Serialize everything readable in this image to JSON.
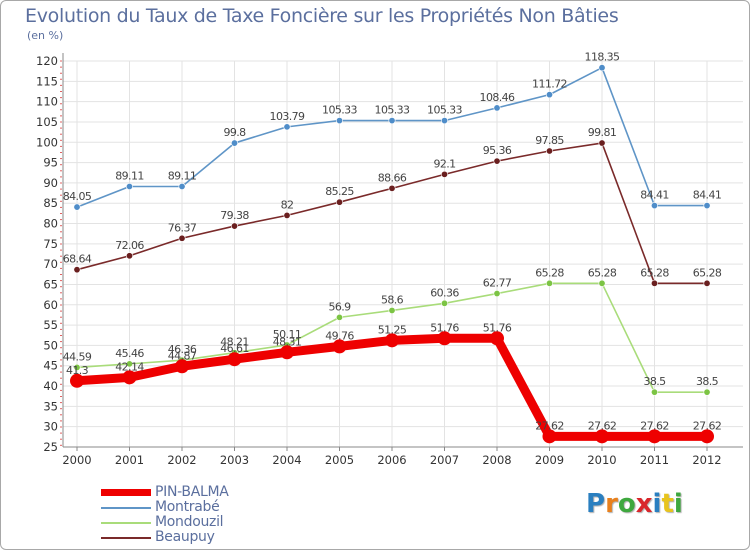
{
  "header": {
    "title": "Evolution du Taux de Taxe Foncière sur les Propriétés Non Bâties",
    "unit": "(en %)"
  },
  "logo": {
    "text": "Proxiti",
    "letters": [
      {
        "ch": "P",
        "color": "#2a7fc0"
      },
      {
        "ch": "r",
        "color": "#e8801d"
      },
      {
        "ch": "o",
        "color": "#3ea83e"
      },
      {
        "ch": "x",
        "color": "#d9262b"
      },
      {
        "ch": "i",
        "color": "#2a7fc0"
      },
      {
        "ch": "t",
        "color": "#e8c41d"
      },
      {
        "ch": "i",
        "color": "#3ea83e"
      }
    ]
  },
  "chart_data": {
    "type": "line",
    "title": "Evolution du Taux de Taxe Foncière sur les Propriétés Non Bâties",
    "ylabel": "(en %)",
    "xlabel": "",
    "x": [
      "2000",
      "2001",
      "2002",
      "2003",
      "2004",
      "2005",
      "2006",
      "2007",
      "2008",
      "2009",
      "2010",
      "2011",
      "2012"
    ],
    "ylim": [
      25,
      120
    ],
    "yticks": [
      25,
      30,
      35,
      40,
      45,
      50,
      55,
      60,
      65,
      70,
      75,
      80,
      85,
      90,
      95,
      100,
      105,
      110,
      115,
      120
    ],
    "grid": true,
    "legend_position": "bottom-left",
    "series": [
      {
        "name": "Montrabé",
        "color": "#5f95c7",
        "marker": "#4f8dc9",
        "values": [
          84.05,
          89.11,
          89.11,
          99.8,
          103.79,
          105.33,
          105.33,
          105.33,
          108.46,
          111.72,
          118.35,
          84.41,
          84.41
        ],
        "labels": [
          "84.05",
          "89.11",
          "89.11",
          "99.8",
          "103.79",
          "105.33",
          "105.33",
          "105.33",
          "108.46",
          "111.72",
          "118.35",
          "84.41",
          "84.41"
        ]
      },
      {
        "name": "Beaupuy",
        "color": "#7a2a2a",
        "marker": "#6a1f1f",
        "values": [
          68.64,
          72.06,
          76.37,
          79.38,
          82,
          85.25,
          88.66,
          92.1,
          95.36,
          97.85,
          99.81,
          65.28,
          65.28
        ],
        "labels": [
          "68.64",
          "72.06",
          "76.37",
          "79.38",
          "82",
          "85.25",
          "88.66",
          "92.1",
          "95.36",
          "97.85",
          "99.81",
          "65.28",
          "65.28"
        ]
      },
      {
        "name": "Mondouzil",
        "color": "#a9dc7a",
        "marker": "#7cc444",
        "values": [
          44.59,
          45.46,
          46.36,
          48.21,
          50.11,
          56.9,
          58.6,
          60.36,
          62.77,
          65.28,
          65.28,
          38.5,
          38.5
        ],
        "labels": [
          "44.59",
          "45.46",
          "46.36",
          "48.21",
          "50.11",
          "56.9",
          "58.6",
          "60.36",
          "62.77",
          "65.28",
          "65.28",
          "38.5",
          "38.5"
        ]
      },
      {
        "name": "PIN-BALMA",
        "color": "#ee0000",
        "marker": "#ee0000",
        "values": [
          41.3,
          42.14,
          44.87,
          46.61,
          48.31,
          49.76,
          51.25,
          51.76,
          51.76,
          27.62,
          27.62,
          27.62,
          27.62
        ],
        "labels": [
          "41.3",
          "42.14",
          "44.87",
          "46.61",
          "48.31",
          "49.76",
          "51.25",
          "51.76",
          "51.76",
          "27.62",
          "27.62",
          "27.62",
          "27.62"
        ]
      }
    ]
  },
  "legend": [
    {
      "name": "PIN-BALMA",
      "color": "#ee0000"
    },
    {
      "name": "Montrabé",
      "color": "#5f95c7"
    },
    {
      "name": "Mondouzil",
      "color": "#a9dc7a"
    },
    {
      "name": "Beaupuy",
      "color": "#7a2a2a"
    }
  ]
}
